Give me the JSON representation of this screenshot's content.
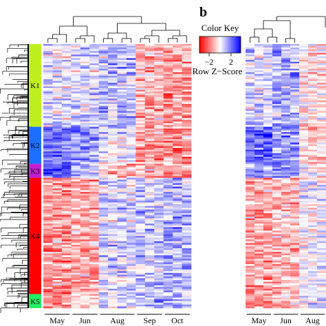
{
  "panel_label": "b",
  "color_key": {
    "title": "Color Key",
    "label": "Row Z−Score",
    "ticks": [
      "−2",
      "0",
      "2"
    ],
    "low_color": "#ff0000",
    "mid_color": "#ffffff",
    "high_color": "#0000ff"
  },
  "clusters": [
    {
      "name": "K1",
      "color": "#bfee1e",
      "rows_fraction": 0.31
    },
    {
      "name": "K2",
      "color": "#1e6fff",
      "rows_fraction": 0.14
    },
    {
      "name": "K3",
      "color": "#c020d0",
      "rows_fraction": 0.05
    },
    {
      "name": "K4",
      "color": "#ff0000",
      "rows_fraction": 0.44
    },
    {
      "name": "K5",
      "color": "#22ee66",
      "rows_fraction": 0.06
    }
  ],
  "chart_data": [
    {
      "type": "heatmap",
      "panel": "a",
      "columns": [
        "May",
        "Jun",
        "Aug",
        "Sep",
        "Oct"
      ],
      "column_groups": [
        3,
        3,
        4,
        3,
        3
      ],
      "value_range": [
        -2,
        2
      ],
      "cluster_column_means": [
        [
          0.2,
          0.3,
          0.5,
          -0.6,
          -0.7
        ],
        [
          1.0,
          0.8,
          0.1,
          -0.8,
          -0.9
        ],
        [
          1.4,
          0.6,
          -0.4,
          -0.6,
          -0.8
        ],
        [
          -0.8,
          -0.6,
          0.3,
          0.5,
          0.6
        ],
        [
          -1.0,
          -0.4,
          0.2,
          0.5,
          0.5
        ]
      ]
    },
    {
      "type": "heatmap",
      "panel": "b",
      "columns": [
        "May",
        "Jun",
        "Aug"
      ],
      "value_range": [
        -2,
        2
      ]
    }
  ]
}
